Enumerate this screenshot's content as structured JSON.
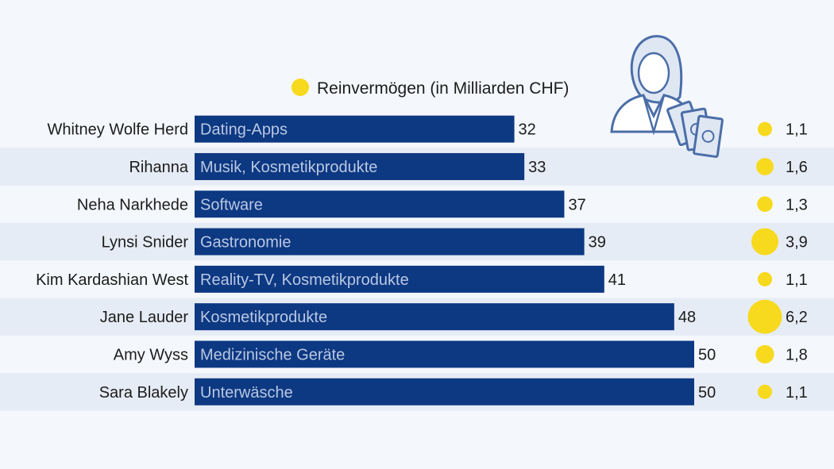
{
  "chart_data": {
    "type": "bar",
    "orientation": "horizontal",
    "categories": [
      "Whitney Wolfe Herd",
      "Rihanna",
      "Neha Narkhede",
      "Lynsi Snider",
      "Kim Kardashian West",
      "Jane Lauder",
      "Amy Wyss",
      "Sara Blakely"
    ],
    "industries": [
      "Dating-Apps",
      "Musik, Kosmetikprodukte",
      "Software",
      "Gastronomie",
      "Reality-TV, Kosmetikprodukte",
      "Kosmetikprodukte",
      "Medizinische Geräte",
      "Unterwäsche"
    ],
    "values": [
      32,
      33,
      37,
      39,
      41,
      48,
      50,
      50
    ],
    "value_labels": [
      "32",
      "33",
      "37",
      "39",
      "41",
      "48",
      "50",
      "50"
    ],
    "net_worth": [
      1.1,
      1.6,
      1.3,
      3.9,
      1.1,
      6.2,
      1.8,
      1.1
    ],
    "net_worth_labels": [
      "1,1",
      "1,6",
      "1,3",
      "3,9",
      "1,1",
      "6,2",
      "1,8",
      "1,1"
    ],
    "legend_label": "Reinvermögen (in Milliarden CHF)",
    "legend_placement": "top",
    "xlim": [
      0,
      50
    ],
    "grid": false
  },
  "colors": {
    "bar": "#0d3882",
    "bar_text": "#b9c8e2",
    "bubble": "#f7d91d",
    "stripe": "#e6ecf5",
    "background": "#f4f7fb",
    "text": "#1c1c1c",
    "icon_stroke": "#4b6ea8",
    "icon_fill": "#dfe7f3"
  },
  "icons": {
    "illustration": "businesswoman-with-money-icon"
  }
}
